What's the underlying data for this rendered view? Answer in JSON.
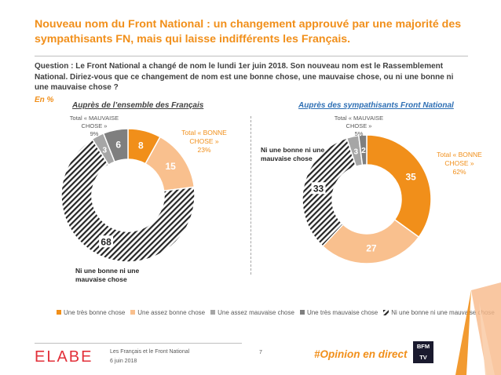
{
  "header": {
    "title": "Nouveau nom du Front National : un changement approuvé par une majorité des sympathisants FN, mais qui laisse indifférents les Français.",
    "question": "Question : Le Front National a changé de nom le lundi 1er juin 2018. Son nouveau nom est le Rassemblement National. Diriez-vous que ce changement de nom est une bonne chose, une mauvaise chose, ou ni une bonne ni une mauvaise chose ?",
    "unit_note": "En %"
  },
  "chart_data": [
    {
      "type": "donut",
      "title": "Auprès de l’ensemble des Français",
      "categories": [
        "Une très bonne chose",
        "Une assez bonne chose",
        "Ni une bonne ni une mauvaise chose",
        "Une assez mauvaise chose",
        "Une très mauvaise chose"
      ],
      "values": [
        8,
        15,
        68,
        3,
        6
      ],
      "annotations": {
        "good_total_label": "Total « BONNE CHOSE »",
        "good_total_value": "23%",
        "bad_total_label": "Total « MAUVAISE CHOSE »",
        "bad_total_value": "9%",
        "neutral_label": "Ni une bonne ni une mauvaise chose"
      }
    },
    {
      "type": "donut",
      "title": "Auprès des sympathisants Front National",
      "categories": [
        "Une très bonne chose",
        "Une assez bonne chose",
        "Ni une bonne ni une mauvaise chose",
        "Une assez mauvaise chose",
        "Une très mauvaise chose"
      ],
      "values": [
        35,
        27,
        33,
        3,
        2
      ],
      "annotations": {
        "good_total_label": "Total « BONNE CHOSE »",
        "good_total_value": "62%",
        "bad_total_label": "Total « MAUVAISE CHOSE »",
        "bad_total_value": "5%",
        "neutral_label": "Ni une bonne ni une mauvaise chose"
      }
    }
  ],
  "legend": {
    "items": [
      {
        "label": "Une très bonne chose",
        "color": "#f18f1a"
      },
      {
        "label": "Une assez bonne chose",
        "color": "#f9c08e"
      },
      {
        "label": "Une assez mauvaise chose",
        "color": "#a6a6a6"
      },
      {
        "label": "Une très mauvaise chose",
        "color": "#7f7f7f"
      },
      {
        "label": "Ni une bonne ni une mauvaise chose",
        "color": "hatched"
      }
    ]
  },
  "footer": {
    "brand": "ELABE",
    "study": "Les Français et le Front National",
    "date": "6 juin 2018",
    "page": "7",
    "hashtag": "#Opinion en direct",
    "partner_line1": "BFM",
    "partner_line2": "TV"
  }
}
